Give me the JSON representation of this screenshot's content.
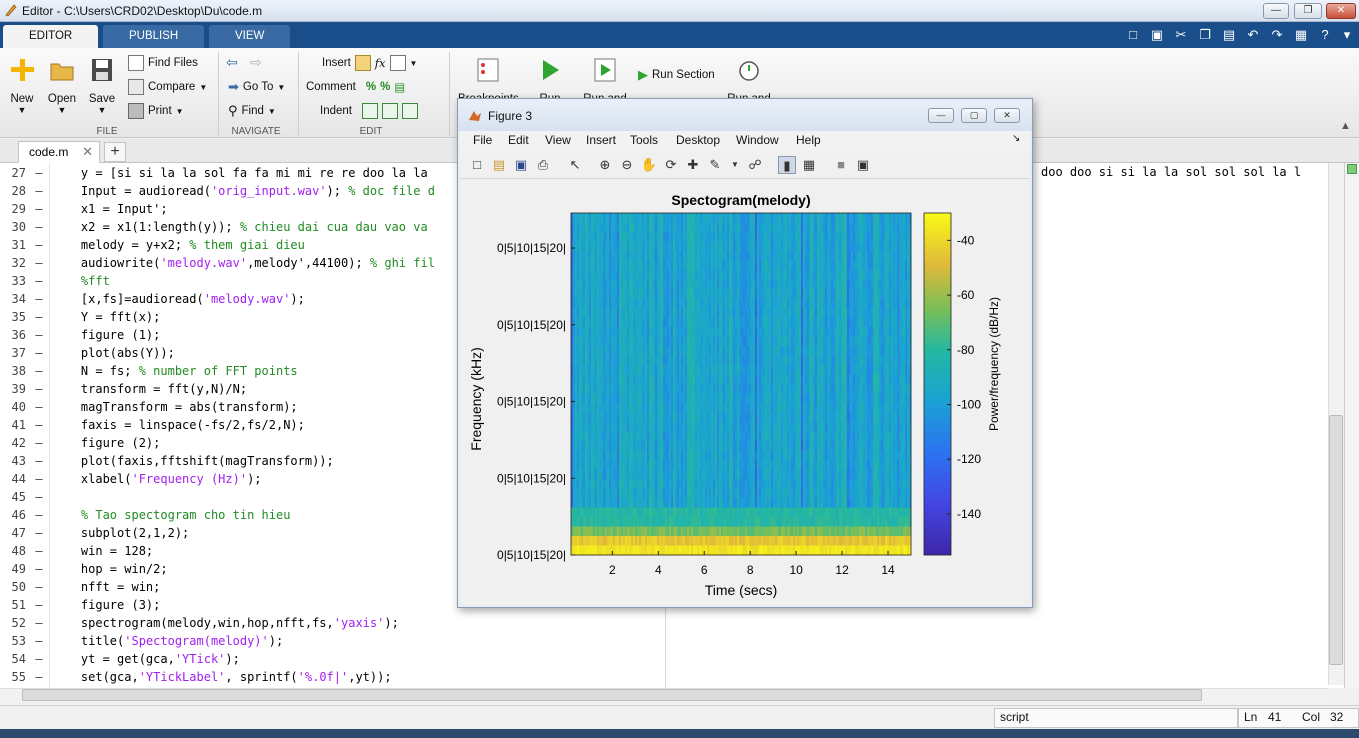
{
  "window": {
    "title": "Editor - C:\\Users\\CRD02\\Desktop\\Du\\code.m"
  },
  "ribbon_tabs": [
    "EDITOR",
    "PUBLISH",
    "VIEW"
  ],
  "ribbon": {
    "file": {
      "label": "FILE",
      "new": "New",
      "open": "Open",
      "save": "Save",
      "find_files": "Find Files",
      "compare": "Compare",
      "print": "Print"
    },
    "navigate": {
      "label": "NAVIGATE",
      "goto": "Go To",
      "find": "Find"
    },
    "edit": {
      "label": "EDIT",
      "insert": "Insert",
      "comment": "Comment",
      "indent": "Indent",
      "fx": "fx"
    },
    "run": {
      "breakpoints": "Breakpoints",
      "run": "Run",
      "run_and_advance": "Run and",
      "run_section": "Run Section",
      "run_and_time": "Run and"
    }
  },
  "doc_tab": {
    "name": "code.m",
    "close": "✕",
    "add": "+"
  },
  "code_lines": [
    {
      "n": "27",
      "parts": [
        {
          "t": "    y = [si si la la sol fa fa mi mi re re doo la la ",
          "c": "code"
        }
      ]
    },
    {
      "n": "28",
      "parts": [
        {
          "t": "    Input = audioread(",
          "c": "code"
        },
        {
          "t": "'orig_input.wav'",
          "c": "str"
        },
        {
          "t": "); ",
          "c": "code"
        },
        {
          "t": "% doc file d",
          "c": "com"
        }
      ]
    },
    {
      "n": "29",
      "parts": [
        {
          "t": "    x1 = Input';",
          "c": "code"
        }
      ]
    },
    {
      "n": "30",
      "parts": [
        {
          "t": "    x2 = x1(1:length(y)); ",
          "c": "code"
        },
        {
          "t": "% chieu dai cua dau vao va",
          "c": "com"
        }
      ]
    },
    {
      "n": "31",
      "parts": [
        {
          "t": "    melody = y+x2; ",
          "c": "code"
        },
        {
          "t": "% them giai dieu",
          "c": "com"
        }
      ]
    },
    {
      "n": "32",
      "parts": [
        {
          "t": "    audiowrite(",
          "c": "code"
        },
        {
          "t": "'melody.wav'",
          "c": "str"
        },
        {
          "t": ",melody',44100); ",
          "c": "code"
        },
        {
          "t": "% ghi fil",
          "c": "com"
        }
      ]
    },
    {
      "n": "33",
      "parts": [
        {
          "t": "    %fft",
          "c": "com"
        }
      ]
    },
    {
      "n": "34",
      "parts": [
        {
          "t": "    [x,fs]=audioread(",
          "c": "code"
        },
        {
          "t": "'melody.wav'",
          "c": "str"
        },
        {
          "t": ");",
          "c": "code"
        }
      ]
    },
    {
      "n": "35",
      "parts": [
        {
          "t": "    Y = fft(x);",
          "c": "code"
        }
      ]
    },
    {
      "n": "36",
      "parts": [
        {
          "t": "    figure (1);",
          "c": "code"
        }
      ]
    },
    {
      "n": "37",
      "parts": [
        {
          "t": "    plot(abs(Y));",
          "c": "code"
        }
      ]
    },
    {
      "n": "38",
      "parts": [
        {
          "t": "    N = fs; ",
          "c": "code"
        },
        {
          "t": "% number of FFT points",
          "c": "com"
        }
      ]
    },
    {
      "n": "39",
      "parts": [
        {
          "t": "    transform = fft(y,N)/N;",
          "c": "code"
        }
      ]
    },
    {
      "n": "40",
      "parts": [
        {
          "t": "    magTransform = abs(transform);",
          "c": "code"
        }
      ]
    },
    {
      "n": "41",
      "parts": [
        {
          "t": "    faxis = linspace(-fs/2,fs/2,N);",
          "c": "code"
        }
      ]
    },
    {
      "n": "42",
      "parts": [
        {
          "t": "    figure (2);",
          "c": "code"
        }
      ]
    },
    {
      "n": "43",
      "parts": [
        {
          "t": "    plot(faxis,fftshift(magTransform));",
          "c": "code"
        }
      ]
    },
    {
      "n": "44",
      "parts": [
        {
          "t": "    xlabel(",
          "c": "code"
        },
        {
          "t": "'Frequency (Hz)'",
          "c": "str"
        },
        {
          "t": ");",
          "c": "code"
        }
      ]
    },
    {
      "n": "45",
      "parts": [
        {
          "t": "",
          "c": "code"
        }
      ]
    },
    {
      "n": "46",
      "parts": [
        {
          "t": "    % Tao spectogram cho tin hieu",
          "c": "com"
        }
      ]
    },
    {
      "n": "47",
      "parts": [
        {
          "t": "    subplot(2,1,2);",
          "c": "code"
        }
      ]
    },
    {
      "n": "48",
      "parts": [
        {
          "t": "    win = 128;",
          "c": "code"
        }
      ]
    },
    {
      "n": "49",
      "parts": [
        {
          "t": "    hop = win/2;",
          "c": "code"
        }
      ]
    },
    {
      "n": "50",
      "parts": [
        {
          "t": "    nfft = win;",
          "c": "code"
        }
      ]
    },
    {
      "n": "51",
      "parts": [
        {
          "t": "    figure (3);",
          "c": "code"
        }
      ]
    },
    {
      "n": "52",
      "parts": [
        {
          "t": "    spectrogram(melody,win,hop,nfft,fs,",
          "c": "code"
        },
        {
          "t": "'yaxis'",
          "c": "str"
        },
        {
          "t": ");",
          "c": "code"
        }
      ]
    },
    {
      "n": "53",
      "parts": [
        {
          "t": "    title(",
          "c": "code"
        },
        {
          "t": "'Spectogram(melody)'",
          "c": "str"
        },
        {
          "t": ");",
          "c": "code"
        }
      ]
    },
    {
      "n": "54",
      "parts": [
        {
          "t": "    yt = get(gca,",
          "c": "code"
        },
        {
          "t": "'YTick'",
          "c": "str"
        },
        {
          "t": ");",
          "c": "code"
        }
      ]
    },
    {
      "n": "55",
      "parts": [
        {
          "t": "    set(gca,",
          "c": "code"
        },
        {
          "t": "'YTickLabel'",
          "c": "str"
        },
        {
          "t": ", sprintf(",
          "c": "code"
        },
        {
          "t": "'%.0f|'",
          "c": "str"
        },
        {
          "t": ",yt));",
          "c": "code"
        }
      ]
    }
  ],
  "right_pane_text": "doo doo si si la la sol sol sol la l",
  "statusbar": {
    "mode": "script",
    "ln_label": "Ln",
    "ln_value": "41",
    "col_label": "Col",
    "col_value": "32"
  },
  "figure": {
    "title": "Figure 3",
    "menus": [
      "File",
      "Edit",
      "View",
      "Insert",
      "Tools",
      "Desktop",
      "Window",
      "Help"
    ],
    "menu_arrow": "↘"
  },
  "chart_data": {
    "type": "heatmap",
    "title": "Spectogram(melody)",
    "xlabel": "Time (secs)",
    "ylabel": "Frequency (kHz)",
    "xlim": [
      0.2,
      15
    ],
    "xticks": [
      2,
      4,
      6,
      8,
      10,
      12,
      14
    ],
    "ytick_labels": [
      "0|5|10|15|20|",
      "0|5|10|15|20|",
      "0|5|10|15|20|",
      "0|5|10|15|20|",
      "0|5|10|15|20|"
    ],
    "colorbar": {
      "label": "Power/frequency (dB/Hz)",
      "range": [
        -155,
        -30
      ],
      "ticks": [
        -40,
        -60,
        -80,
        -100,
        -120,
        -140
      ]
    },
    "colors": {
      "low": "#3e26a8",
      "mid": "#24b8b0",
      "high": "#f9fb15"
    }
  }
}
